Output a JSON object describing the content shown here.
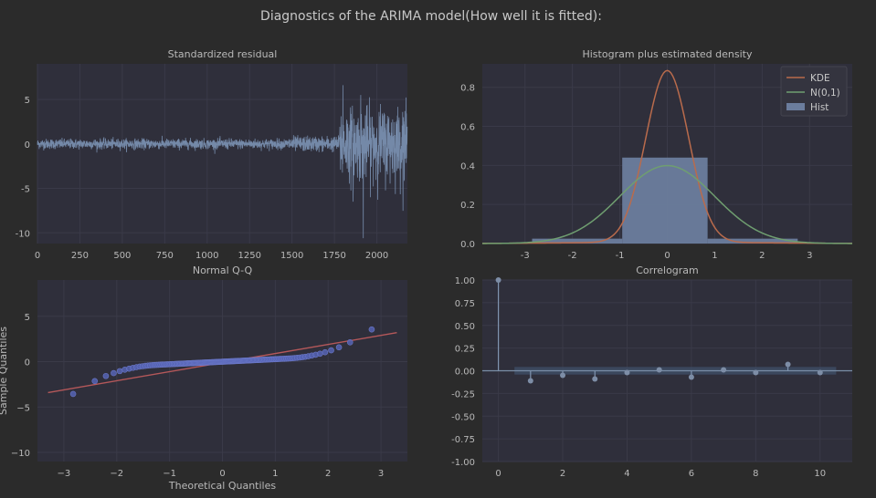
{
  "figure": {
    "title": "Diagnostics of the ARIMA model(How well it is fitted):"
  },
  "colors": {
    "page_bg": "#2b2b2b",
    "panel_bg": "#2f2f3b",
    "grid": "#3a3a48",
    "series": "#7489a8",
    "hist": "#6b7d9d",
    "kde": "#b96b4c",
    "normal": "#6f9e70",
    "qq_marker": "#5563b4",
    "qq_line": "#b5585a",
    "ci_band": "#3e4e66"
  },
  "chart_data": [
    {
      "type": "line",
      "title": "Standardized residual",
      "xlim": [
        0,
        2180
      ],
      "ylim": [
        -11.2,
        9.0
      ],
      "xticks": [
        0,
        250,
        500,
        750,
        1000,
        1250,
        1500,
        1750,
        2000
      ],
      "yticks": [
        5,
        0,
        -5,
        -10
      ],
      "n_points": 2180,
      "segments": [
        {
          "x": [
            0,
            1780
          ],
          "noise_sd": 0.28
        },
        {
          "x": [
            1780,
            2180
          ],
          "noise_sd": 2.0
        }
      ],
      "extremes": [
        {
          "x": 1800,
          "y": 6.6
        },
        {
          "x": 1905,
          "y": 5.5
        },
        {
          "x": 1920,
          "y": -10.6
        },
        {
          "x": 1860,
          "y": -6.5
        },
        {
          "x": 2165,
          "y": 3.7
        }
      ]
    },
    {
      "type": "bar",
      "title": "Histogram plus estimated density",
      "xlim": [
        -3.9,
        3.9
      ],
      "ylim": [
        0,
        0.92
      ],
      "xticks": [
        -3,
        -2,
        -1,
        0,
        1,
        2,
        3
      ],
      "yticks": [
        0.0,
        0.2,
        0.4,
        0.6,
        0.8
      ],
      "hist_bins": [
        {
          "x0": -2.85,
          "x1": -0.95,
          "value": 0.025
        },
        {
          "x0": -0.95,
          "x1": 0.85,
          "value": 0.44
        },
        {
          "x0": 0.85,
          "x1": 2.75,
          "value": 0.025
        }
      ],
      "kde_peak": 0.88,
      "legend": [
        "KDE",
        "N(0,1)",
        "Hist"
      ],
      "legend_position": "top-right"
    },
    {
      "type": "scatter",
      "title": "Normal Q-Q",
      "xlabel": "Theoretical Quantiles",
      "ylabel": "Sample Quantiles",
      "xlim": [
        -3.5,
        3.5
      ],
      "ylim": [
        -11.0,
        9.0
      ],
      "xticks": [
        -3,
        -2,
        -1,
        0,
        1,
        2,
        3
      ],
      "yticks": [
        5,
        0,
        -5,
        -10
      ],
      "reference_line": [
        [
          -3.3,
          -3.4
        ],
        [
          3.3,
          3.2
        ]
      ],
      "n_points": 140
    },
    {
      "type": "bar",
      "title": "Correlogram",
      "xlim": [
        -0.5,
        11.0
      ],
      "ylim": [
        -1.0,
        1.0
      ],
      "xticks": [
        0,
        2,
        4,
        6,
        8,
        10
      ],
      "yticks": [
        "1.00",
        "0.75",
        "0.50",
        "0.25",
        "0.00",
        "-0.25",
        "-0.50",
        "-0.75",
        "-1.00"
      ],
      "lags": [
        0,
        1,
        2,
        3,
        4,
        5,
        6,
        7,
        8,
        9,
        10
      ],
      "values": [
        1.0,
        -0.11,
        -0.05,
        -0.09,
        -0.02,
        0.01,
        -0.07,
        0.01,
        -0.02,
        0.07,
        -0.02
      ],
      "confidence_band": 0.042
    }
  ]
}
